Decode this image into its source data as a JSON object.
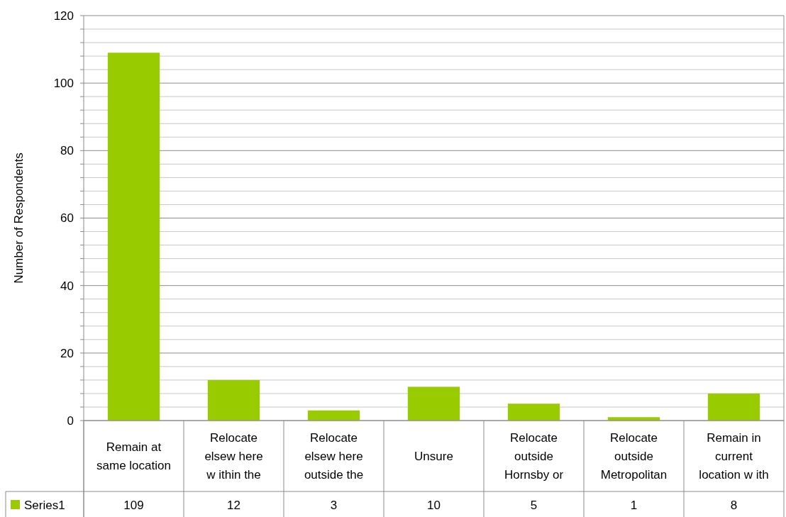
{
  "chart_data": {
    "type": "bar",
    "ylabel": "Number of Respondents",
    "categories": [
      "Remain at\nsame location",
      "Relocate\nelsew here\nw ithin the",
      "Relocate\nelsew here\noutside the",
      "Unsure",
      "Relocate\noutside\nHornsby or",
      "Relocate\noutside\nMetropolitan",
      "Remain in\ncurrent\nlocation w ith"
    ],
    "series": [
      {
        "name": "Series1",
        "color": "#99cc00",
        "values": [
          109,
          12,
          3,
          10,
          5,
          1,
          8
        ]
      }
    ],
    "ylim": [
      0,
      120
    ],
    "yticks": [
      0,
      {
        "value": 4,
        "label": null
      },
      {
        "value": 8,
        "label": null
      },
      {
        "value": 12,
        "label": null
      },
      {
        "value": 16,
        "label": null
      },
      20,
      {
        "value": 24,
        "label": null
      },
      {
        "value": 28,
        "label": null
      },
      {
        "value": 32,
        "label": null
      },
      {
        "value": 36,
        "label": null
      },
      40,
      {
        "value": 44,
        "label": null
      },
      {
        "value": 48,
        "label": null
      },
      {
        "value": 52,
        "label": null
      },
      {
        "value": 56,
        "label": null
      },
      60,
      {
        "value": 64,
        "label": null
      },
      {
        "value": 68,
        "label": null
      },
      {
        "value": 72,
        "label": null
      },
      {
        "value": 76,
        "label": null
      },
      80,
      {
        "value": 84,
        "label": null
      },
      {
        "value": 88,
        "label": null
      },
      {
        "value": 92,
        "label": null
      },
      {
        "value": 96,
        "label": null
      },
      100,
      {
        "value": 104,
        "label": null
      },
      {
        "value": 108,
        "label": null
      },
      {
        "value": 112,
        "label": null
      },
      {
        "value": 116,
        "label": null
      },
      120
    ],
    "grid": true,
    "data_labels": true,
    "legend": "bottom"
  }
}
